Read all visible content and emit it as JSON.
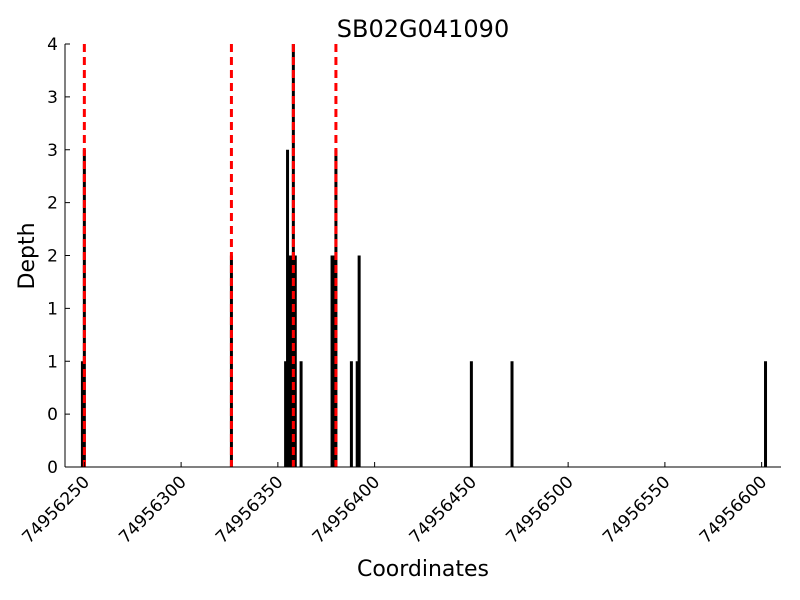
{
  "chart_data": {
    "type": "bar",
    "title": "SB02G041090",
    "xlabel": "Coordinates",
    "ylabel": "Depth",
    "xlim": [
      74956240,
      74956610
    ],
    "ylim": [
      0,
      4
    ],
    "grid": false,
    "x_ticks": [
      74956250,
      74956300,
      74956350,
      74956400,
      74956450,
      74956500,
      74956550,
      74956600
    ],
    "x_tick_labels": [
      "74956250",
      "74956300",
      "74956350",
      "74956400",
      "74956450",
      "74956500",
      "74956550",
      "74956600"
    ],
    "y_ticks": [
      0,
      0.5,
      1,
      1.5,
      2,
      2.5,
      3,
      3.5,
      4
    ],
    "y_tick_labels": [
      "0",
      "0",
      "1",
      "1",
      "2",
      "2",
      "3",
      "3",
      "4"
    ],
    "series": [
      {
        "name": "depth",
        "color": "#000000",
        "x": [
          74956249,
          74956250,
          74956326,
          74956354,
          74956355,
          74956356,
          74956357,
          74956358,
          74956359,
          74956362,
          74956378,
          74956379,
          74956380,
          74956388,
          74956391,
          74956392,
          74956450,
          74956471,
          74956602
        ],
        "values": [
          1,
          3,
          2,
          1,
          3,
          2,
          2,
          4,
          2,
          1,
          2,
          2,
          3,
          1,
          1,
          2,
          1,
          1,
          1
        ]
      }
    ],
    "reference_lines": {
      "color": "#ff0000",
      "style": "dashed",
      "x": [
        74956250,
        74956326,
        74956358,
        74956380
      ]
    }
  }
}
